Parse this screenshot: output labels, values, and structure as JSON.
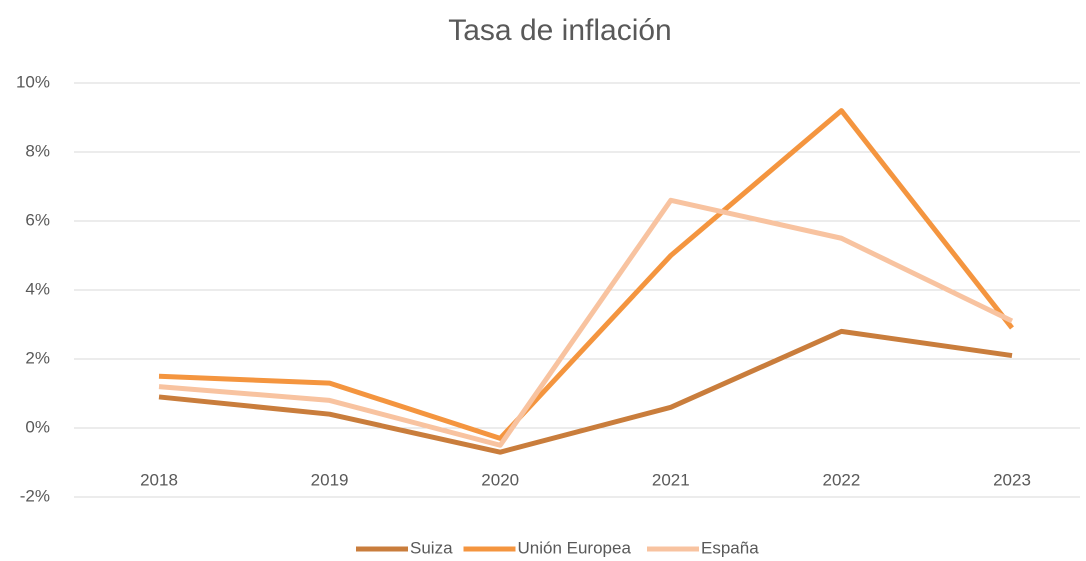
{
  "chart_data": {
    "type": "line",
    "title": "Tasa de inflación",
    "categories": [
      "2018",
      "2019",
      "2020",
      "2021",
      "2022",
      "2023"
    ],
    "series": [
      {
        "name": "Suiza",
        "color": "#c97d3c",
        "values": [
          0.9,
          0.4,
          -0.7,
          0.6,
          2.8,
          2.1
        ]
      },
      {
        "name": "Unión Europea",
        "color": "#f4953f",
        "values": [
          1.5,
          1.3,
          -0.3,
          5.0,
          9.2,
          2.9
        ]
      },
      {
        "name": "España",
        "color": "#f8c3a0",
        "values": [
          1.2,
          0.8,
          -0.5,
          6.6,
          5.5,
          3.1
        ]
      }
    ],
    "ylim": [
      -2,
      10
    ],
    "yticks": [
      {
        "value": -2,
        "label": "-2%"
      },
      {
        "value": 0,
        "label": "0%"
      },
      {
        "value": 2,
        "label": "2%"
      },
      {
        "value": 4,
        "label": "4%"
      },
      {
        "value": 6,
        "label": "6%"
      },
      {
        "value": 8,
        "label": "8%"
      },
      {
        "value": 10,
        "label": "10%"
      }
    ],
    "grid": true,
    "legend": "bottom"
  }
}
